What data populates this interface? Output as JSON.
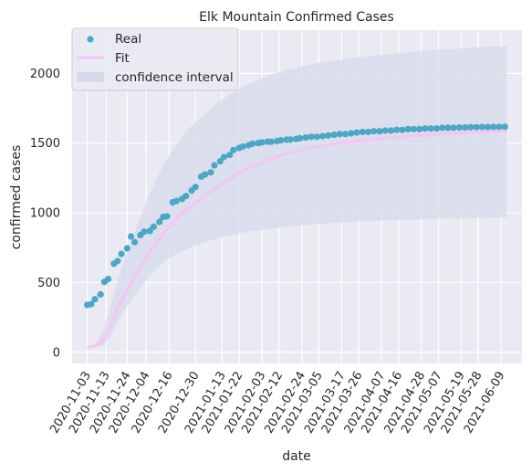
{
  "chart_data": {
    "type": "scatter",
    "title": "Elk Mountain Confirmed Cases",
    "xlabel": "date",
    "ylabel": "confirmed cases",
    "x_ticks": [
      "2020-11-03",
      "2020-11-13",
      "2020-11-24",
      "2020-12-04",
      "2020-12-16",
      "2020-12-30",
      "2021-01-13",
      "2021-01-22",
      "2021-02-03",
      "2021-02-12",
      "2021-02-24",
      "2021-03-05",
      "2021-03-17",
      "2021-03-26",
      "2021-04-07",
      "2021-04-16",
      "2021-04-28",
      "2021-05-07",
      "2021-05-19",
      "2021-05-28",
      "2021-06-09"
    ],
    "y_ticks": [
      0,
      500,
      1000,
      1500,
      2000
    ],
    "ylim": [
      -80,
      2310
    ],
    "grid": true,
    "legend_position": "top-left",
    "colors": {
      "background": "#eaeaf2",
      "real": "#4ca7c5",
      "fit": "#f5c4f5",
      "confidence_interval": "#d5dbeb"
    },
    "series": [
      {
        "name": "Real",
        "style": "markers",
        "x": [
          "2020-11-03",
          "2020-11-05",
          "2020-11-07",
          "2020-11-10",
          "2020-11-12",
          "2020-11-14",
          "2020-11-17",
          "2020-11-19",
          "2020-11-21",
          "2020-11-24",
          "2020-11-26",
          "2020-11-28",
          "2020-12-01",
          "2020-12-03",
          "2020-12-06",
          "2020-12-08",
          "2020-12-11",
          "2020-12-13",
          "2020-12-15",
          "2020-12-18",
          "2020-12-20",
          "2020-12-23",
          "2020-12-25",
          "2020-12-28",
          "2020-12-30",
          "2021-01-02",
          "2021-01-04",
          "2021-01-07",
          "2021-01-09",
          "2021-01-12",
          "2021-01-14",
          "2021-01-17",
          "2021-01-19",
          "2021-01-22",
          "2021-01-24",
          "2021-01-27",
          "2021-01-29",
          "2021-02-01",
          "2021-02-03",
          "2021-02-06",
          "2021-02-08",
          "2021-02-11",
          "2021-02-13",
          "2021-02-16",
          "2021-02-18",
          "2021-02-21",
          "2021-02-23",
          "2021-02-26",
          "2021-03-01",
          "2021-03-04",
          "2021-03-07",
          "2021-03-10",
          "2021-03-13",
          "2021-03-16",
          "2021-03-19",
          "2021-03-22",
          "2021-03-25",
          "2021-03-28",
          "2021-03-31",
          "2021-04-03",
          "2021-04-06",
          "2021-04-09",
          "2021-04-12",
          "2021-04-15",
          "2021-04-18",
          "2021-04-21",
          "2021-04-24",
          "2021-04-27",
          "2021-04-30",
          "2021-05-03",
          "2021-05-06",
          "2021-05-09",
          "2021-05-12",
          "2021-05-15",
          "2021-05-18",
          "2021-05-21",
          "2021-05-24",
          "2021-05-27",
          "2021-05-30",
          "2021-06-02",
          "2021-06-05",
          "2021-06-08",
          "2021-06-11"
        ],
        "values": [
          340,
          345,
          380,
          415,
          505,
          525,
          635,
          655,
          705,
          745,
          830,
          790,
          840,
          865,
          870,
          900,
          935,
          970,
          975,
          1075,
          1085,
          1100,
          1120,
          1160,
          1185,
          1260,
          1275,
          1290,
          1340,
          1370,
          1400,
          1415,
          1450,
          1465,
          1475,
          1485,
          1495,
          1500,
          1505,
          1510,
          1510,
          1515,
          1520,
          1525,
          1525,
          1530,
          1535,
          1540,
          1545,
          1545,
          1550,
          1555,
          1560,
          1565,
          1565,
          1570,
          1575,
          1580,
          1580,
          1585,
          1585,
          1590,
          1590,
          1595,
          1595,
          1600,
          1600,
          1600,
          1605,
          1605,
          1605,
          1610,
          1610,
          1610,
          1612,
          1612,
          1614,
          1614,
          1615,
          1615,
          1616,
          1616,
          1617
        ]
      },
      {
        "name": "Fit",
        "style": "line",
        "x": [
          "2020-11-03",
          "2020-11-07",
          "2020-11-11",
          "2020-11-15",
          "2020-11-19",
          "2020-11-23",
          "2020-11-27",
          "2020-12-01",
          "2020-12-05",
          "2020-12-09",
          "2020-12-13",
          "2020-12-17",
          "2020-12-21",
          "2020-12-25",
          "2020-12-29",
          "2021-01-04",
          "2021-01-10",
          "2021-01-16",
          "2021-01-22",
          "2021-01-28",
          "2021-02-03",
          "2021-02-09",
          "2021-02-15",
          "2021-02-21",
          "2021-03-01",
          "2021-03-09",
          "2021-03-17",
          "2021-03-25",
          "2021-04-05",
          "2021-04-16",
          "2021-04-28",
          "2021-05-10",
          "2021-05-22",
          "2021-06-03",
          "2021-06-12"
        ],
        "values": [
          35,
          45,
          80,
          170,
          320,
          420,
          520,
          610,
          700,
          780,
          850,
          910,
          970,
          1020,
          1060,
          1120,
          1180,
          1235,
          1285,
          1325,
          1360,
          1395,
          1420,
          1440,
          1465,
          1485,
          1500,
          1515,
          1530,
          1545,
          1555,
          1565,
          1575,
          1580,
          1585
        ]
      },
      {
        "name": "confidence interval",
        "style": "band",
        "x": [
          "2020-11-03",
          "2020-11-07",
          "2020-11-11",
          "2020-11-15",
          "2020-11-19",
          "2020-11-23",
          "2020-11-27",
          "2020-12-01",
          "2020-12-05",
          "2020-12-09",
          "2020-12-13",
          "2020-12-17",
          "2020-12-21",
          "2020-12-25",
          "2020-12-29",
          "2021-01-04",
          "2021-01-10",
          "2021-01-16",
          "2021-01-22",
          "2021-01-28",
          "2021-02-03",
          "2021-02-09",
          "2021-02-15",
          "2021-02-21",
          "2021-03-01",
          "2021-03-09",
          "2021-03-17",
          "2021-03-25",
          "2021-04-05",
          "2021-04-16",
          "2021-04-28",
          "2021-05-10",
          "2021-05-22",
          "2021-06-03",
          "2021-06-12"
        ],
        "lower": [
          30,
          35,
          45,
          110,
          220,
          310,
          390,
          460,
          530,
          590,
          640,
          680,
          710,
          735,
          760,
          790,
          815,
          835,
          852,
          866,
          878,
          888,
          897,
          905,
          915,
          923,
          930,
          936,
          942,
          948,
          953,
          957,
          961,
          964,
          966
        ],
        "upper": [
          40,
          55,
          140,
          320,
          520,
          680,
          830,
          970,
          1110,
          1230,
          1340,
          1430,
          1510,
          1580,
          1640,
          1710,
          1780,
          1840,
          1890,
          1930,
          1965,
          1995,
          2020,
          2040,
          2065,
          2085,
          2100,
          2115,
          2130,
          2145,
          2160,
          2172,
          2183,
          2192,
          2198
        ]
      }
    ]
  }
}
